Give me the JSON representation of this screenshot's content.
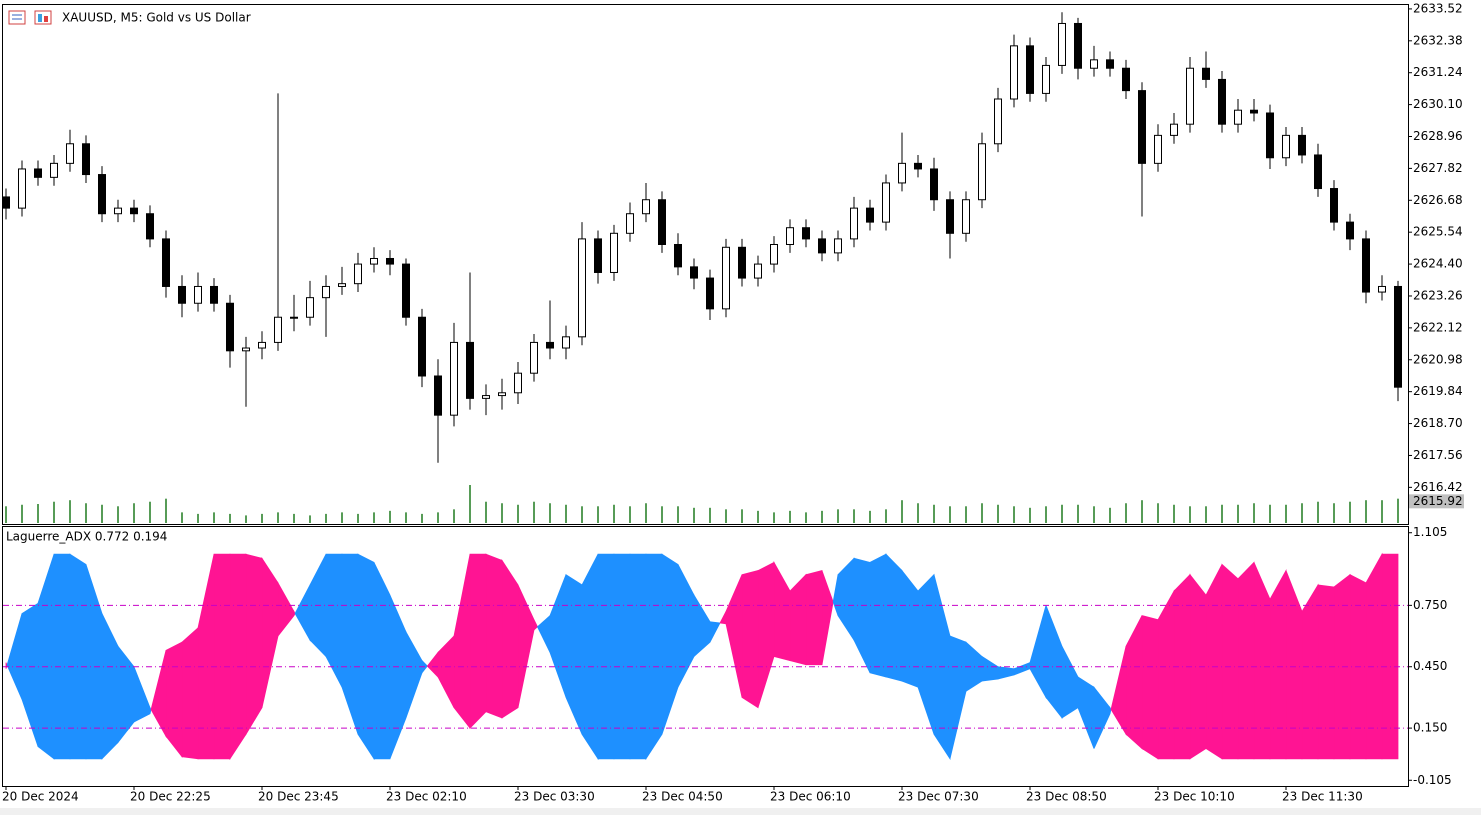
{
  "chart_data": [
    {
      "type": "candlestick",
      "title": "XAUUSD, M5:  Gold vs US Dollar",
      "categories": [
        "20 Dec 2024",
        null,
        null,
        null,
        null,
        null,
        null,
        null,
        "20 Dec 22:25",
        null,
        null,
        null,
        null,
        null,
        null,
        null,
        "20 Dec 23:45",
        null,
        null,
        null,
        null,
        null,
        null,
        null,
        "23 Dec 02:10",
        null,
        null,
        null,
        null,
        null,
        null,
        null,
        "23 Dec 03:30",
        null,
        null,
        null,
        null,
        null,
        null,
        null,
        "23 Dec 04:50",
        null,
        null,
        null,
        null,
        null,
        null,
        null,
        "23 Dec 06:10",
        null,
        null,
        null,
        null,
        null,
        null,
        null,
        "23 Dec 07:30",
        null,
        null,
        null,
        null,
        null,
        null,
        null,
        "23 Dec 08:50",
        null,
        null,
        null,
        null,
        null,
        null,
        null,
        "23 Dec 10:10",
        null,
        null,
        null,
        null,
        null,
        null,
        null,
        "23 Dec 11:30",
        null,
        null,
        null,
        null,
        null,
        null,
        null
      ],
      "open": [
        2626.8,
        2626.4,
        2627.8,
        2627.5,
        2628.0,
        2628.7,
        2627.6,
        2626.2,
        2626.4,
        2626.2,
        2625.3,
        2623.6,
        2623.0,
        2623.6,
        2623.0,
        2621.3,
        2621.4,
        2621.6,
        2622.5,
        2622.5,
        2623.2,
        2623.6,
        2623.7,
        2624.4,
        2624.6,
        2624.4,
        2622.5,
        2620.4,
        2619.0,
        2621.6,
        2619.6,
        2619.7,
        2619.8,
        2620.5,
        2621.6,
        2621.4,
        2621.8,
        2625.3,
        2624.1,
        2625.5,
        2626.2,
        2626.7,
        2625.1,
        2624.3,
        2623.9,
        2622.8,
        2625.0,
        2623.9,
        2624.4,
        2625.1,
        2625.7,
        2625.3,
        2624.8,
        2625.3,
        2626.4,
        2625.9,
        2627.3,
        2628.0,
        2627.8,
        2626.7,
        2625.5,
        2626.7,
        2628.7,
        2630.3,
        2632.2,
        2630.5,
        2631.5,
        2633.0,
        2631.4,
        2631.7,
        2631.4,
        2630.6,
        2628.0,
        2629.0,
        2629.4,
        2631.4,
        2631.0,
        2629.4,
        2629.9,
        2629.8,
        2628.2,
        2629.0,
        2628.3,
        2627.1,
        2625.9,
        2625.3,
        2623.4,
        2623.6
      ],
      "high": [
        2627.1,
        2628.1,
        2628.1,
        2628.3,
        2629.2,
        2629.0,
        2627.9,
        2626.7,
        2626.7,
        2626.5,
        2625.6,
        2624.0,
        2624.1,
        2623.9,
        2623.3,
        2621.8,
        2622.0,
        2630.5,
        2623.3,
        2623.8,
        2624.0,
        2624.3,
        2624.8,
        2625.0,
        2624.9,
        2624.6,
        2622.8,
        2621.0,
        2622.3,
        2624.1,
        2620.1,
        2620.3,
        2620.9,
        2621.9,
        2623.1,
        2622.2,
        2625.9,
        2625.6,
        2625.8,
        2626.6,
        2627.3,
        2627.0,
        2625.5,
        2624.6,
        2624.2,
        2625.3,
        2625.3,
        2624.7,
        2625.4,
        2626.0,
        2626.0,
        2625.6,
        2625.6,
        2626.8,
        2626.7,
        2627.6,
        2629.1,
        2628.3,
        2628.2,
        2627.0,
        2627.0,
        2629.1,
        2630.7,
        2632.6,
        2632.5,
        2631.8,
        2633.4,
        2633.2,
        2632.2,
        2632.0,
        2631.7,
        2630.9,
        2629.4,
        2629.8,
        2631.8,
        2632.0,
        2631.3,
        2630.3,
        2630.3,
        2630.1,
        2629.3,
        2629.3,
        2628.7,
        2627.4,
        2626.2,
        2625.6,
        2624.0,
        2623.8
      ],
      "low": [
        2626.0,
        2626.1,
        2627.2,
        2627.2,
        2627.7,
        2627.3,
        2625.9,
        2625.9,
        2625.9,
        2625.0,
        2623.2,
        2622.5,
        2622.7,
        2622.7,
        2620.7,
        2619.3,
        2621.0,
        2621.3,
        2622.0,
        2622.2,
        2621.8,
        2623.3,
        2623.4,
        2624.1,
        2624.0,
        2622.2,
        2620.0,
        2617.3,
        2618.6,
        2619.2,
        2619.0,
        2619.2,
        2619.4,
        2620.2,
        2621.0,
        2621.0,
        2621.5,
        2623.7,
        2623.8,
        2625.2,
        2625.9,
        2624.8,
        2624.0,
        2623.5,
        2622.4,
        2622.5,
        2623.6,
        2623.6,
        2624.1,
        2624.8,
        2625.0,
        2624.5,
        2624.5,
        2625.0,
        2625.6,
        2625.6,
        2627.0,
        2627.5,
        2626.3,
        2624.6,
        2625.2,
        2626.4,
        2628.4,
        2630.0,
        2630.2,
        2630.2,
        2631.2,
        2631.0,
        2631.1,
        2631.1,
        2630.3,
        2626.1,
        2627.7,
        2628.7,
        2629.1,
        2630.7,
        2629.1,
        2629.1,
        2629.5,
        2627.8,
        2627.9,
        2628.0,
        2626.8,
        2625.6,
        2624.9,
        2623.0,
        2623.1,
        2619.5
      ],
      "close": [
        2626.4,
        2627.8,
        2627.5,
        2628.0,
        2628.7,
        2627.6,
        2626.2,
        2626.4,
        2626.2,
        2625.3,
        2623.6,
        2623.0,
        2623.6,
        2623.0,
        2621.3,
        2621.4,
        2621.6,
        2622.5,
        2622.5,
        2623.2,
        2623.6,
        2623.7,
        2624.4,
        2624.6,
        2624.4,
        2622.5,
        2620.4,
        2619.0,
        2621.6,
        2619.6,
        2619.7,
        2619.8,
        2620.5,
        2621.6,
        2621.4,
        2621.8,
        2625.3,
        2624.1,
        2625.5,
        2626.2,
        2626.7,
        2625.1,
        2624.3,
        2623.9,
        2622.8,
        2625.0,
        2623.9,
        2624.4,
        2625.1,
        2625.7,
        2625.3,
        2624.8,
        2625.3,
        2626.4,
        2625.9,
        2627.3,
        2628.0,
        2627.8,
        2626.7,
        2625.5,
        2626.7,
        2628.7,
        2630.3,
        2632.2,
        2630.5,
        2631.5,
        2633.0,
        2631.4,
        2631.7,
        2631.4,
        2630.6,
        2628.0,
        2629.0,
        2629.4,
        2631.4,
        2631.0,
        2629.4,
        2629.9,
        2629.8,
        2628.2,
        2629.0,
        2628.3,
        2627.1,
        2625.9,
        2625.3,
        2623.4,
        2623.6,
        2620.0
      ],
      "volume": [
        22,
        24,
        25,
        28,
        30,
        26,
        24,
        22,
        26,
        28,
        32,
        14,
        12,
        14,
        12,
        10,
        12,
        14,
        12,
        10,
        12,
        14,
        12,
        14,
        16,
        14,
        12,
        14,
        18,
        50,
        28,
        26,
        24,
        28,
        26,
        24,
        22,
        22,
        24,
        22,
        26,
        22,
        22,
        20,
        20,
        18,
        18,
        16,
        14,
        16,
        14,
        16,
        18,
        18,
        16,
        18,
        30,
        26,
        24,
        22,
        22,
        26,
        24,
        22,
        20,
        22,
        24,
        24,
        22,
        20,
        26,
        30,
        26,
        24,
        22,
        22,
        24,
        24,
        26,
        24,
        24,
        26,
        28,
        26,
        28,
        30,
        30,
        32
      ],
      "volume_color": "#1f7a1f",
      "current_price": 2615.92,
      "ylim": [
        2615.11,
        2633.66
      ],
      "yticks": [
        2633.52,
        2632.38,
        2631.24,
        {
          "value": 2630.1,
          "label": "2630.10"
        },
        2628.96,
        2627.82,
        2626.68,
        2625.54,
        {
          "value": 2624.4,
          "label": "2624.40"
        },
        2623.26,
        2622.12,
        2620.98,
        2619.84,
        {
          "value": 2618.7,
          "label": "2618.70"
        },
        2617.56,
        2616.42
      ]
    },
    {
      "type": "filling",
      "title": "Laguerre_ADX 0.772 0.194",
      "series": [
        {
          "color": "#1e90ff",
          "values": [
            0.44,
            0.71,
            0.76,
            1.0,
            1.0,
            0.95,
            0.71,
            0.55,
            0.45,
            0.25,
            0.11,
            0.01,
            0,
            0,
            0,
            0.12,
            0.25,
            0.6,
            0.7,
            0.85,
            1.0,
            1.0,
            1.0,
            0.96,
            0.8,
            0.62,
            0.48,
            0.4,
            0.25,
            0.15,
            0.23,
            0.2,
            0.25,
            0.63,
            0.7,
            0.9,
            0.85,
            1.0,
            1.0,
            1.0,
            1.0,
            1.0,
            0.95,
            0.8,
            0.67,
            0.66,
            0.3,
            0.25,
            0.5,
            0.48,
            0.46,
            0.46,
            0.9,
            0.98,
            0.96,
            1.0,
            0.92,
            0.82,
            0.9,
            0.6,
            0.57,
            0.5,
            0.45,
            0.44,
            0.47,
            0.75,
            0.55,
            0.4,
            0.35,
            0.25,
            0.12,
            0.05,
            0,
            0,
            0,
            0.05,
            0,
            0,
            0,
            0,
            0,
            0,
            0,
            0,
            0,
            0,
            0,
            0
          ]
        },
        {
          "color": "#ff1493",
          "values": [
            0.47,
            0.29,
            0.06,
            0,
            0,
            0,
            0,
            0.08,
            0.18,
            0.22,
            0.53,
            0.57,
            0.64,
            1.0,
            1.0,
            1.0,
            0.98,
            0.86,
            0.72,
            0.58,
            0.5,
            0.35,
            0.12,
            0,
            0,
            0.2,
            0.42,
            0.52,
            0.6,
            1.0,
            1.0,
            0.97,
            0.85,
            0.68,
            0.52,
            0.3,
            0.12,
            0,
            0,
            0,
            0,
            0.12,
            0.35,
            0.5,
            0.57,
            0.72,
            0.9,
            0.92,
            0.96,
            0.82,
            0.9,
            0.92,
            0.7,
            0.58,
            0.42,
            0.4,
            0.38,
            0.35,
            0.12,
            0,
            0.33,
            0.38,
            0.39,
            0.41,
            0.44,
            0.3,
            0.2,
            0.25,
            0.05,
            0.22,
            0.55,
            0.7,
            0.68,
            0.82,
            0.9,
            0.8,
            0.95,
            0.88,
            0.96,
            0.78,
            0.92,
            0.72,
            0.85,
            0.84,
            0.9,
            0.86,
            1.0,
            1.0
          ]
        }
      ],
      "levels": [
        0.75,
        0.45,
        0.15
      ],
      "level_color": "#c800c8",
      "ylim": [
        -0.133,
        1.133
      ],
      "yticks": [
        1.105,
        {
          "value": 0.75,
          "label": "0.750"
        },
        {
          "value": 0.45,
          "label": "0.450"
        },
        {
          "value": 0.15,
          "label": "0.150"
        },
        -0.105
      ]
    }
  ]
}
